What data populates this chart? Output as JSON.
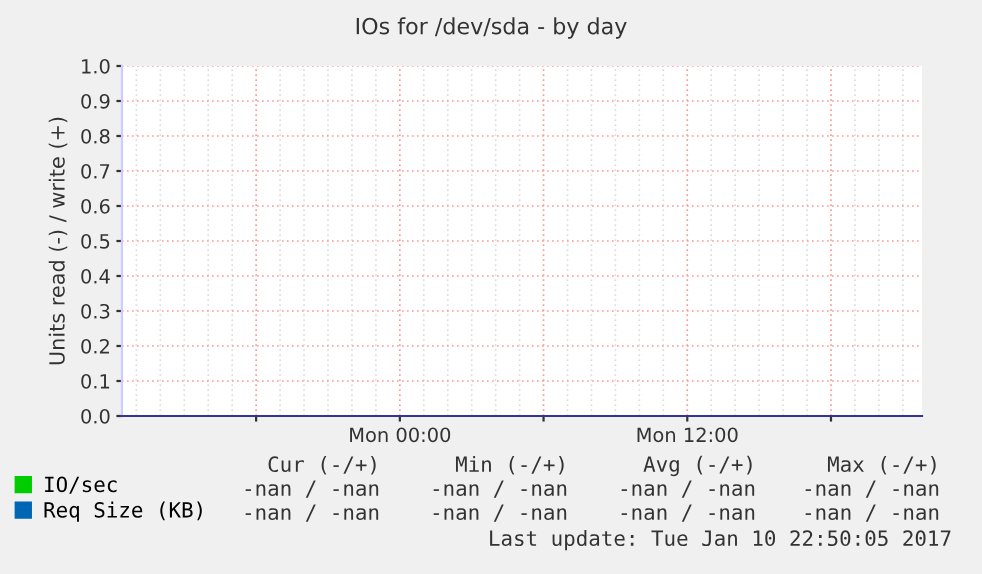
{
  "chart_data": {
    "type": "line",
    "title": "IOs for /dev/sda - by day",
    "ylabel": "Units read (-) / write (+)",
    "categories": [
      null,
      null,
      null,
      null,
      null,
      null,
      null,
      null,
      null,
      null,
      null,
      "Mon 00:00",
      null,
      null,
      null,
      null,
      null,
      null,
      null,
      null,
      null,
      null,
      null,
      "Mon 12:00",
      null,
      null,
      null,
      null,
      null,
      null,
      null,
      null,
      null
    ],
    "series": [
      {
        "name": "IO/sec",
        "color": "#00cc00",
        "values": [
          null,
          null,
          null,
          null,
          null,
          null,
          null,
          null,
          null,
          null,
          null,
          null,
          null,
          null,
          null,
          null,
          null,
          null,
          null,
          null,
          null,
          null,
          null,
          null,
          null,
          null,
          null,
          null,
          null,
          null,
          null,
          null,
          null
        ]
      },
      {
        "name": "Req Size (KB)",
        "color": "#0066b3",
        "values": [
          null,
          null,
          null,
          null,
          null,
          null,
          null,
          null,
          null,
          null,
          null,
          null,
          null,
          null,
          null,
          null,
          null,
          null,
          null,
          null,
          null,
          null,
          null,
          null,
          null,
          null,
          null,
          null,
          null,
          null,
          null,
          null,
          null
        ]
      }
    ],
    "ylim": [
      0,
      1.0
    ],
    "yticks": [
      {
        "value": 0,
        "label": "0.0"
      },
      0.1,
      0.2,
      0.3,
      0.4,
      0.5,
      0.6,
      0.7,
      0.8,
      0.9,
      {
        "value": 1.0,
        "label": "1.0"
      }
    ],
    "grid": true,
    "legend": "bottom left",
    "annotations": [
      "Cur (-/+)",
      "Min (-/+)",
      "Avg (-/+)",
      "Max (-/+)",
      "-nan / -nan",
      "-nan / -nan",
      "-nan / -nan",
      "-nan / -nan",
      "-nan / -nan",
      "-nan / -nan",
      "-nan / -nan",
      "-nan / -nan",
      "Last update: Tue Jan 10 22:50:05 2017"
    ]
  }
}
